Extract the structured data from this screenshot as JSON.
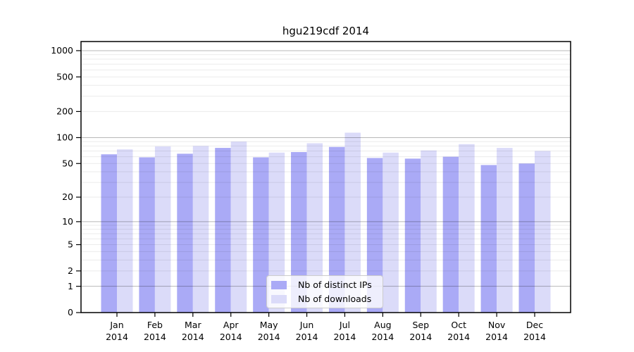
{
  "title": "hgu219cdf 2014",
  "colors": {
    "bar_ips": "#aaaaf6",
    "bar_downloads": "#dbdbf9",
    "major_gridline": "#b9b9b9",
    "minor_gridline": "#ececec",
    "frame": "#000000",
    "legend_border": "#cccccc",
    "legend_bg": "rgba(255,255,255,0.8)",
    "text": "#000000"
  },
  "legend": {
    "items": [
      {
        "label": "Nb of distinct IPs",
        "series_key": "ips"
      },
      {
        "label": "Nb of downloads",
        "series_key": "downloads"
      }
    ]
  },
  "chart_data": {
    "type": "bar",
    "title": "hgu219cdf 2014",
    "categories": [
      "Jan",
      "Feb",
      "Mar",
      "Apr",
      "May",
      "Jun",
      "Jul",
      "Aug",
      "Sep",
      "Oct",
      "Nov",
      "Dec"
    ],
    "x_sublabel": "2014",
    "series": [
      {
        "name": "Nb of distinct IPs",
        "color": "#aaaaf6",
        "values": [
          64,
          59,
          65,
          76,
          59,
          68,
          78,
          58,
          57,
          60,
          48,
          50
        ]
      },
      {
        "name": "Nb of downloads",
        "color": "#dbdbf9",
        "values": [
          73,
          79,
          80,
          90,
          67,
          86,
          114,
          67,
          71,
          84,
          76,
          70
        ]
      }
    ],
    "xlabel": "",
    "ylabel": "",
    "yscale": "log10(1+x)",
    "yticks": [
      0,
      1,
      2,
      5,
      10,
      20,
      50,
      100,
      200,
      500,
      1000
    ],
    "ylim": [
      0,
      1270
    ],
    "grid": "horizontal",
    "legend_position": "lower-center-inside"
  }
}
